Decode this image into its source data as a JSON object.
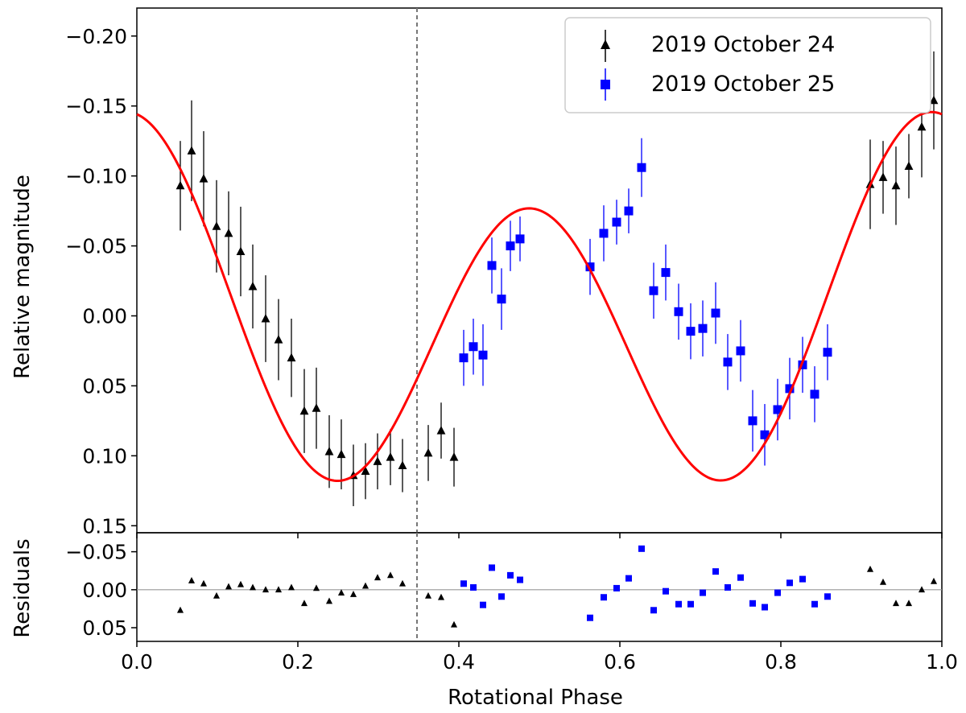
{
  "chart_data": [
    {
      "panel": "main",
      "type": "scatter",
      "xlabel": "",
      "ylabel": "Relative magnitude",
      "xlim": [
        0.0,
        1.0
      ],
      "ylim": [
        0.155,
        -0.22
      ],
      "y_inverted": true,
      "yticks": [
        -0.2,
        -0.15,
        -0.1,
        -0.05,
        0.0,
        0.05,
        0.1,
        0.15
      ],
      "ytick_labels": [
        "−0.20",
        "−0.15",
        "−0.10",
        "−0.05",
        "0.00",
        "0.05",
        "0.10",
        "0.15"
      ],
      "vline_x": 0.348,
      "legend": {
        "placement": "top-right",
        "entries": [
          "2019 October 24",
          "2019 October 25"
        ]
      },
      "series": [
        {
          "name": "2019 October 24",
          "marker": "triangle",
          "color": "#000000",
          "x": [
            0.054,
            0.068,
            0.083,
            0.099,
            0.114,
            0.129,
            0.144,
            0.16,
            0.176,
            0.192,
            0.208,
            0.223,
            0.239,
            0.254,
            0.269,
            0.284,
            0.299,
            0.315,
            0.33,
            0.362,
            0.378,
            0.394,
            0.911,
            0.927,
            0.943,
            0.959,
            0.975,
            0.99
          ],
          "y": [
            -0.093,
            -0.118,
            -0.098,
            -0.064,
            -0.059,
            -0.046,
            -0.021,
            0.002,
            0.017,
            0.03,
            0.068,
            0.066,
            0.097,
            0.099,
            0.114,
            0.111,
            0.104,
            0.101,
            0.107,
            0.098,
            0.082,
            0.101,
            -0.094,
            -0.099,
            -0.093,
            -0.107,
            -0.135,
            -0.154
          ],
          "err": [
            0.032,
            0.036,
            0.034,
            0.033,
            0.03,
            0.032,
            0.03,
            0.031,
            0.029,
            0.028,
            0.03,
            0.029,
            0.026,
            0.025,
            0.022,
            0.02,
            0.02,
            0.02,
            0.019,
            0.02,
            0.02,
            0.021,
            0.032,
            0.026,
            0.028,
            0.023,
            0.036,
            0.035
          ]
        },
        {
          "name": "2019 October 25",
          "marker": "square",
          "color": "#0000ff",
          "x": [
            0.406,
            0.418,
            0.43,
            0.441,
            0.453,
            0.464,
            0.476,
            0.563,
            0.58,
            0.596,
            0.611,
            0.627,
            0.642,
            0.657,
            0.673,
            0.688,
            0.703,
            0.719,
            0.734,
            0.75,
            0.765,
            0.78,
            0.796,
            0.811,
            0.827,
            0.842,
            0.858
          ],
          "y": [
            0.03,
            0.022,
            0.028,
            -0.036,
            -0.012,
            -0.05,
            -0.055,
            -0.035,
            -0.059,
            -0.067,
            -0.075,
            -0.106,
            -0.018,
            -0.031,
            -0.003,
            0.011,
            0.009,
            -0.002,
            0.033,
            0.025,
            0.075,
            0.085,
            0.067,
            0.052,
            0.035,
            0.056,
            0.026
          ],
          "err": [
            0.02,
            0.02,
            0.022,
            0.02,
            0.022,
            0.018,
            0.016,
            0.02,
            0.02,
            0.016,
            0.016,
            0.021,
            0.02,
            0.02,
            0.02,
            0.02,
            0.02,
            0.022,
            0.02,
            0.022,
            0.022,
            0.022,
            0.022,
            0.022,
            0.02,
            0.02,
            0.02
          ]
        }
      ],
      "fit_curve": {
        "color": "#ff0000",
        "label": ""
      }
    },
    {
      "panel": "residuals",
      "type": "scatter",
      "xlabel": "Rotational Phase",
      "ylabel": "Residuals",
      "xlim": [
        0.0,
        1.0
      ],
      "ylim": [
        0.068,
        -0.075
      ],
      "y_inverted": true,
      "yticks": [
        -0.05,
        0.0,
        0.05
      ],
      "ytick_labels": [
        "−0.05",
        "0.00",
        "0.05"
      ],
      "xticks": [
        0.0,
        0.2,
        0.4,
        0.6,
        0.8,
        1.0
      ],
      "xtick_labels": [
        "0.0",
        "0.2",
        "0.4",
        "0.6",
        "0.8",
        "1.0"
      ],
      "hline_y": 0.0,
      "vline_x": 0.348,
      "series": [
        {
          "name": "2019 October 24",
          "marker": "triangle",
          "color": "#000000",
          "x": [
            0.054,
            0.068,
            0.083,
            0.099,
            0.114,
            0.129,
            0.144,
            0.16,
            0.176,
            0.192,
            0.208,
            0.223,
            0.239,
            0.254,
            0.269,
            0.284,
            0.299,
            0.315,
            0.33,
            0.362,
            0.378,
            0.394,
            0.911,
            0.927,
            0.943,
            0.959,
            0.975,
            0.99
          ],
          "y": [
            0.027,
            -0.012,
            -0.008,
            0.008,
            -0.004,
            -0.007,
            -0.003,
            0.0,
            0.0,
            -0.003,
            0.018,
            -0.002,
            0.015,
            0.004,
            0.006,
            -0.005,
            -0.016,
            -0.019,
            -0.008,
            0.008,
            0.01,
            0.046,
            -0.027,
            -0.01,
            0.018,
            0.018,
            0.0,
            -0.011
          ]
        },
        {
          "name": "2019 October 25",
          "marker": "square",
          "color": "#0000ff",
          "x": [
            0.406,
            0.418,
            0.43,
            0.441,
            0.453,
            0.464,
            0.476,
            0.563,
            0.58,
            0.596,
            0.611,
            0.627,
            0.642,
            0.657,
            0.673,
            0.688,
            0.703,
            0.719,
            0.734,
            0.75,
            0.765,
            0.78,
            0.796,
            0.811,
            0.827,
            0.842,
            0.858
          ],
          "y": [
            -0.008,
            -0.003,
            0.02,
            -0.029,
            0.009,
            -0.019,
            -0.013,
            0.037,
            0.01,
            -0.002,
            -0.015,
            -0.054,
            0.027,
            0.002,
            0.019,
            0.019,
            0.004,
            -0.024,
            -0.003,
            -0.016,
            0.018,
            0.023,
            0.004,
            -0.009,
            -0.014,
            0.019,
            0.009
          ]
        }
      ]
    }
  ]
}
